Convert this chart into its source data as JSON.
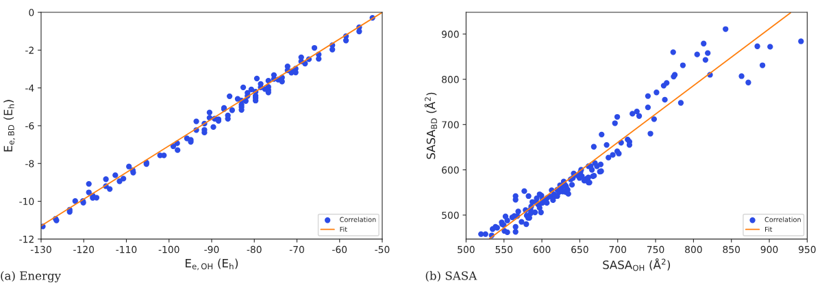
{
  "chart_data": [
    {
      "type": "scatter",
      "xlabel": "E$_{e,OH}$ (E$_{h}$)",
      "ylabel": "E$_{e,BD}$ (E$_{h}$)",
      "annotations": [
        "(a) Energy"
      ],
      "xlim": [
        -130,
        -50
      ],
      "ylim": [
        -12,
        0
      ],
      "xticks": [
        -130,
        -120,
        -110,
        -100,
        -90,
        -80,
        -70,
        -60,
        -50
      ],
      "yticks": [
        -12,
        -10,
        -8,
        -6,
        -4,
        -2,
        0
      ],
      "grid": false,
      "legend": "bottom right",
      "marker": "circle",
      "series": [
        {
          "name": "Correlation",
          "color": "#2c4be6",
          "x": [
            -129.6,
            -126.6,
            -126.4,
            -123.3,
            -123.3,
            -122.0,
            -120.2,
            -120.1,
            -118.8,
            -118.8,
            -117.9,
            -117.9,
            -117.0,
            -114.8,
            -114.8,
            -113.9,
            -112.6,
            -111.6,
            -110.7,
            -109.4,
            -108.5,
            -108.4,
            -105.3,
            -105.3,
            -102.1,
            -101.2,
            -99.0,
            -98.1,
            -98.0,
            -95.8,
            -94.9,
            -94.9,
            -93.6,
            -93.6,
            -91.7,
            -91.7,
            -91.7,
            -90.5,
            -90.5,
            -89.6,
            -89.3,
            -88.4,
            -88.4,
            -87.1,
            -87.1,
            -86.2,
            -86.2,
            -85.8,
            -85.2,
            -83.9,
            -83.0,
            -83.0,
            -83.0,
            -83.0,
            -82.6,
            -82.0,
            -81.6,
            -81.6,
            -80.7,
            -79.7,
            -79.7,
            -79.7,
            -79.7,
            -79.4,
            -78.5,
            -78.5,
            -77.5,
            -76.7,
            -76.7,
            -76.7,
            -76.7,
            -75.4,
            -75.4,
            -74.4,
            -73.5,
            -73.5,
            -72.2,
            -72.2,
            -71.3,
            -71.3,
            -70.3,
            -70.3,
            -69.0,
            -69.0,
            -68.1,
            -67.2,
            -65.9,
            -64.9,
            -64.9,
            -61.7,
            -61.7,
            -58.5,
            -58.5,
            -55.4,
            -55.4,
            -52.3
          ],
          "values": [
            -11.33,
            -10.93,
            -11.01,
            -10.45,
            -10.56,
            -9.99,
            -9.99,
            -10.07,
            -9.08,
            -9.53,
            -9.71,
            -9.82,
            -9.81,
            -8.83,
            -9.2,
            -9.35,
            -8.62,
            -8.94,
            -8.8,
            -8.16,
            -8.36,
            -8.48,
            -7.95,
            -8.03,
            -7.57,
            -7.57,
            -7.09,
            -6.93,
            -7.29,
            -6.67,
            -6.75,
            -6.85,
            -5.77,
            -6.23,
            -5.89,
            -6.22,
            -6.36,
            -5.3,
            -5.58,
            -6.07,
            -5.63,
            -5.66,
            -5.74,
            -5.06,
            -5.12,
            -5.46,
            -5.63,
            -4.44,
            -5.18,
            -4.58,
            -4.67,
            -4.89,
            -5.01,
            -5.16,
            -3.97,
            -4.69,
            -4.26,
            -4.43,
            -4.08,
            -4.2,
            -4.42,
            -4.53,
            -4.67,
            -3.5,
            -3.79,
            -3.97,
            -4.06,
            -3.62,
            -3.95,
            -4.11,
            -4.24,
            -3.32,
            -3.53,
            -3.56,
            -3.45,
            -3.66,
            -2.86,
            -3.07,
            -3.12,
            -3.19,
            -2.98,
            -3.18,
            -2.38,
            -2.6,
            -2.71,
            -2.48,
            -1.88,
            -2.23,
            -2.46,
            -1.74,
            -1.97,
            -1.26,
            -1.49,
            -0.79,
            -1.01,
            -0.29
          ]
        },
        {
          "name": "Fit",
          "type": "line",
          "color": "#ff7f0e",
          "line_style": "solid",
          "marker": "none",
          "x": [
            -130,
            -50
          ],
          "values": [
            -11.3,
            0
          ]
        }
      ]
    },
    {
      "type": "scatter",
      "xlabel": "SASA$_{OH}$ (Å$^{2}$)",
      "ylabel": "SASA$_{BD}$ (Å$^{2}$)",
      "annotations": [
        "(b) SASA"
      ],
      "xlim": [
        500,
        950
      ],
      "ylim": [
        447,
        948
      ],
      "xticks": [
        500,
        550,
        600,
        650,
        700,
        750,
        800,
        850,
        900,
        950
      ],
      "yticks": [
        500,
        600,
        700,
        800,
        900
      ],
      "grid": false,
      "legend": "bottom right",
      "marker": "circle",
      "series": [
        {
          "name": "Correlation",
          "color": "#2c4be6",
          "x": [
            519.7,
            525.6,
            533.8,
            535,
            538.8,
            541,
            547,
            547.6,
            549.7,
            550.6,
            552,
            554.4,
            554.4,
            560.9,
            563.5,
            565.3,
            565.3,
            565.3,
            565.3,
            567.6,
            568.8,
            573.2,
            576.8,
            578.5,
            579.4,
            580,
            581.8,
            582.4,
            583.5,
            585,
            585.3,
            585.9,
            587.4,
            590.9,
            592.6,
            593.2,
            594.7,
            596.2,
            597,
            597,
            598.8,
            599.4,
            600.6,
            601,
            605,
            606.5,
            607,
            611,
            612.9,
            614.7,
            616,
            617.6,
            620.3,
            620.3,
            622.6,
            624,
            625.6,
            627.4,
            628.8,
            630.3,
            631.5,
            631.8,
            632.6,
            634,
            634.9,
            638,
            639.7,
            640.9,
            642,
            646.8,
            649.7,
            650.9,
            651.8,
            652.7,
            655.9,
            658.8,
            661.3,
            661.5,
            661.6,
            662.8,
            664.3,
            666,
            667.4,
            668.5,
            668.8,
            670,
            672.6,
            676.5,
            677.6,
            678.2,
            678.8,
            685.4,
            687.8,
            693.5,
            696.4,
            699.4,
            699.4,
            701.5,
            704.5,
            713.1,
            715.5,
            715.5,
            719.4,
            725.3,
            728.3,
            739.9,
            739.9,
            743.2,
            748,
            751.2,
            760.7,
            762.2,
            764.6,
            773.2,
            773.8,
            775.3,
            783.3,
            786,
            804.8,
            813.4,
            815.8,
            818.8,
            821.8,
            842.3,
            863.4,
            872.3,
            884.2,
            891,
            901.1,
            941.8
          ],
          "values": [
            458,
            458,
            455,
            469,
            474,
            472,
            484,
            480,
            478,
            465,
            497,
            488,
            462,
            495,
            498,
            474,
            463,
            542,
            534,
            498,
            508,
            485,
            553,
            511,
            480,
            499,
            494,
            542,
            494,
            512,
            504,
            519,
            529,
            506,
            529,
            537,
            524,
            522,
            546,
            516,
            506,
            543,
            527,
            535,
            532,
            527,
            538,
            541,
            555,
            533,
            546,
            542,
            542,
            556,
            551,
            566,
            560,
            552,
            574,
            567,
            551,
            564,
            559,
            556,
            547,
            579,
            567,
            582,
            592,
            588,
            582,
            595,
            600,
            586,
            576,
            580,
            583,
            572,
            608,
            572,
            608,
            600,
            586,
            651,
            587,
            615,
            608,
            596,
            612,
            597,
            678,
            655,
            627,
            633,
            703,
            717,
            641,
            636,
            660,
            667,
            662,
            655,
            724,
            729,
            719,
            763,
            738,
            680,
            712,
            771,
            786,
            755,
            792,
            860,
            806,
            810,
            748,
            831,
            855,
            879,
            843,
            858,
            810,
            911,
            807,
            793,
            873,
            831,
            872,
            884
          ]
        },
        {
          "name": "Fit",
          "type": "line",
          "color": "#ff7f0e",
          "line_style": "solid",
          "marker": "none",
          "x": [
            531,
            928
          ],
          "values": [
            448,
            947
          ]
        }
      ]
    }
  ]
}
